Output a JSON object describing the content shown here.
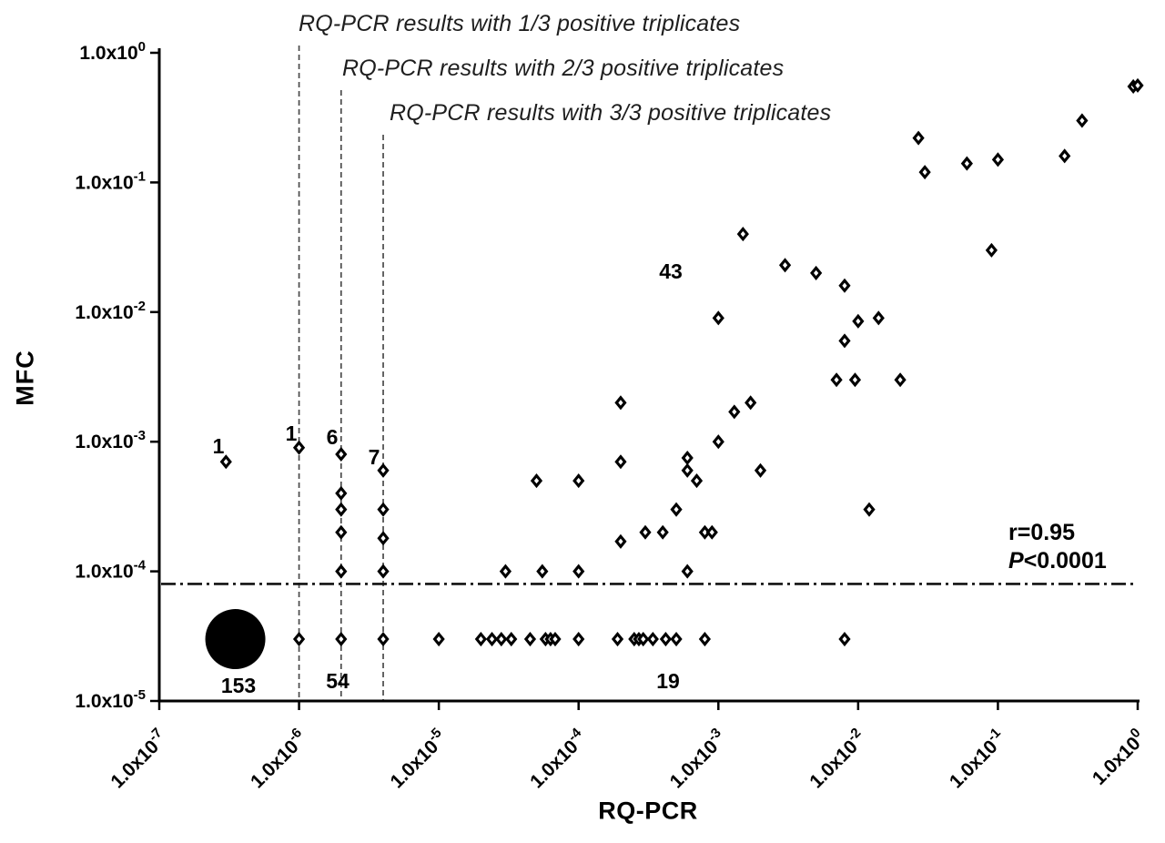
{
  "figure": {
    "legend_lines": [
      "RQ-PCR results with 1/3 positive triplicates",
      "RQ-PCR results with 2/3 positive triplicates",
      "RQ-PCR results with 3/3 positive triplicates"
    ],
    "stats_line1": "r=0.95",
    "stats_p_prefix": "P",
    "stats_p_rest": "<0.0001",
    "xlabel": "RQ-PCR",
    "ylabel": "MFC"
  },
  "chart_data": {
    "type": "scatter",
    "title": "",
    "xlabel": "RQ-PCR",
    "ylabel": "MFC",
    "x_scale": "log",
    "y_scale": "log",
    "x_range": [
      1e-07,
      1
    ],
    "y_range": [
      1e-05,
      1
    ],
    "grid": false,
    "tick_mantissa": "1.0x10",
    "x_tick_exponents": [
      -7,
      -6,
      -5,
      -4,
      -3,
      -2,
      -1,
      0
    ],
    "y_tick_exponents": [
      0,
      -1,
      -2,
      -3,
      -4,
      -5
    ],
    "marker": "open-diamond",
    "points": [
      [
        3e-07,
        0.0007
      ],
      [
        1e-06,
        0.0009
      ],
      [
        2e-06,
        0.0008
      ],
      [
        2e-06,
        0.0004
      ],
      [
        2e-06,
        0.0003
      ],
      [
        2e-06,
        0.0002
      ],
      [
        2e-06,
        0.0001
      ],
      [
        4e-06,
        0.0006
      ],
      [
        4e-06,
        0.0003
      ],
      [
        4e-06,
        0.00018
      ],
      [
        4e-06,
        0.0001
      ],
      [
        3e-05,
        0.0001
      ],
      [
        5e-05,
        0.0005
      ],
      [
        5.5e-05,
        0.0001
      ],
      [
        0.0001,
        0.0005
      ],
      [
        0.0001,
        0.0001
      ],
      [
        0.0002,
        0.002
      ],
      [
        0.0002,
        0.0007
      ],
      [
        0.0002,
        0.00017
      ],
      [
        0.0003,
        0.0002
      ],
      [
        0.0004,
        0.0002
      ],
      [
        0.0005,
        0.0003
      ],
      [
        0.0006,
        0.00075
      ],
      [
        0.0006,
        0.0006
      ],
      [
        0.0006,
        0.0001
      ],
      [
        0.0007,
        0.0005
      ],
      [
        0.0008,
        0.0002
      ],
      [
        0.0009,
        0.0002
      ],
      [
        0.001,
        0.001
      ],
      [
        0.001,
        0.009
      ],
      [
        0.0013,
        0.0017
      ],
      [
        0.0015,
        0.04
      ],
      [
        0.0017,
        0.002
      ],
      [
        0.002,
        0.0006
      ],
      [
        0.003,
        0.023
      ],
      [
        0.005,
        0.02
      ],
      [
        0.007,
        0.003
      ],
      [
        0.008,
        0.016
      ],
      [
        0.008,
        0.006
      ],
      [
        0.0095,
        0.003
      ],
      [
        0.01,
        0.0085
      ],
      [
        0.012,
        0.0003
      ],
      [
        0.014,
        0.009
      ],
      [
        0.02,
        0.003
      ],
      [
        0.027,
        0.22
      ],
      [
        0.03,
        0.12
      ],
      [
        0.06,
        0.14
      ],
      [
        0.09,
        0.03
      ],
      [
        0.1,
        0.15
      ],
      [
        0.3,
        0.16
      ],
      [
        0.4,
        0.3
      ],
      [
        0.93,
        0.55
      ],
      [
        1,
        0.56
      ]
    ],
    "baseline_value": 3e-05,
    "baseline_points_x": [
      1e-06,
      2e-06,
      4e-06,
      1e-05,
      2e-05,
      2.4e-05,
      2.8e-05,
      3.3e-05,
      4.5e-05,
      5.8e-05,
      6.3e-05,
      6.8e-05,
      0.0001,
      0.00019,
      0.00025,
      0.00027,
      0.00029,
      0.00034,
      0.00042,
      0.0005,
      0.0008,
      0.008
    ],
    "cluster_circle": {
      "x": 3.5e-07,
      "y": 3e-05,
      "count": "153"
    },
    "threshold_lines": {
      "vertical": [
        {
          "x": 1e-06,
          "label": "RQ-PCR results with 1/3 positive triplicates"
        },
        {
          "x": 2e-06,
          "label": "RQ-PCR results with 2/3 positive triplicates"
        },
        {
          "x": 4e-06,
          "label": "RQ-PCR results with 3/3 positive triplicates"
        }
      ],
      "horizontal_y": 8e-05
    },
    "annotations": [
      {
        "text": "43",
        "px": [
          737,
          306
        ]
      },
      {
        "text": "1",
        "px": [
          240,
          498
        ]
      },
      {
        "text": "1",
        "px": [
          320,
          484
        ]
      },
      {
        "text": "6",
        "px": [
          365,
          488
        ]
      },
      {
        "text": "7",
        "px": [
          411,
          510
        ]
      },
      {
        "text": "153",
        "px": [
          262,
          761
        ]
      },
      {
        "text": "54",
        "px": [
          371,
          756
        ]
      },
      {
        "text": "19",
        "px": [
          734,
          756
        ]
      }
    ],
    "correlation": {
      "r": "r=0.95",
      "p": "P<0.0001"
    }
  }
}
